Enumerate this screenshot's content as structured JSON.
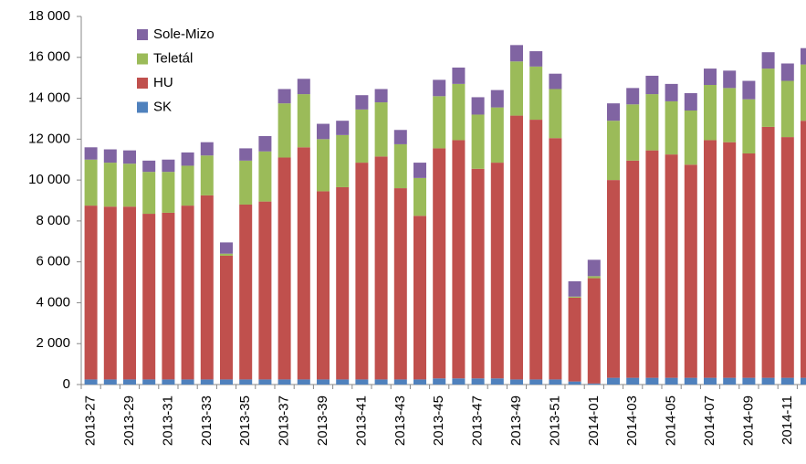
{
  "chart_data": {
    "type": "stacked-bar",
    "categories": [
      "2013-27",
      null,
      "2013-29",
      null,
      "2013-31",
      null,
      "2013-33",
      null,
      "2013-35",
      null,
      "2013-37",
      null,
      "2013-39",
      null,
      "2013-41",
      null,
      "2013-43",
      null,
      "2013-45",
      null,
      "2013-47",
      null,
      "2013-49",
      null,
      "2013-51",
      null,
      "2014-01",
      null,
      "2014-03",
      null,
      "2014-05",
      null,
      "2014-07",
      null,
      "2014-09",
      null,
      "2014-11",
      null
    ],
    "series": [
      {
        "name": "SK",
        "color": "#4f81bd",
        "values": [
          250,
          250,
          250,
          250,
          250,
          250,
          250,
          250,
          250,
          250,
          250,
          250,
          250,
          250,
          250,
          250,
          250,
          250,
          300,
          300,
          300,
          300,
          250,
          250,
          250,
          150,
          50,
          330,
          330,
          330,
          330,
          330,
          330,
          330,
          330,
          330,
          330,
          330
        ]
      },
      {
        "name": "HU",
        "color": "#c0504d",
        "values": [
          8500,
          8450,
          8450,
          8100,
          8150,
          8500,
          9000,
          6050,
          8550,
          8700,
          10850,
          11350,
          9200,
          9400,
          10600,
          10900,
          9350,
          8000,
          11250,
          11650,
          10250,
          10550,
          12900,
          12700,
          11800,
          4100,
          5150,
          9670,
          10620,
          11120,
          10920,
          10420,
          11620,
          11520,
          10970,
          12270,
          11770,
          12570
        ]
      },
      {
        "name": "Teletál",
        "color": "#9bbb59",
        "values": [
          2250,
          2150,
          2100,
          2050,
          2000,
          1950,
          1950,
          100,
          2150,
          2450,
          2650,
          2600,
          2550,
          2550,
          2600,
          2650,
          2150,
          1850,
          2550,
          2750,
          2650,
          2700,
          2650,
          2600,
          2400,
          50,
          100,
          2900,
          2750,
          2750,
          2600,
          2650,
          2700,
          2650,
          2650,
          2850,
          2750,
          2750
        ]
      },
      {
        "name": "Sole-Mizo",
        "color": "#8064a2",
        "values": [
          600,
          650,
          650,
          550,
          600,
          650,
          650,
          550,
          600,
          750,
          700,
          750,
          750,
          700,
          700,
          650,
          700,
          750,
          800,
          800,
          850,
          850,
          800,
          750,
          750,
          750,
          800,
          850,
          800,
          900,
          850,
          850,
          800,
          850,
          900,
          800,
          850,
          800
        ]
      }
    ],
    "ylim": [
      0,
      18000
    ],
    "yticks": [
      0,
      {
        "value": 2000,
        "label": "2 000"
      },
      {
        "value": 4000,
        "label": "4 000"
      },
      {
        "value": 6000,
        "label": "6 000"
      },
      {
        "value": 8000,
        "label": "8 000"
      },
      {
        "value": 10000,
        "label": "10 000"
      },
      {
        "value": 12000,
        "label": "12 000"
      },
      {
        "value": 14000,
        "label": "14 000"
      },
      {
        "value": 16000,
        "label": "16 000"
      },
      {
        "value": 18000,
        "label": "18 000"
      }
    ],
    "grid": false,
    "legend": "top-left"
  }
}
